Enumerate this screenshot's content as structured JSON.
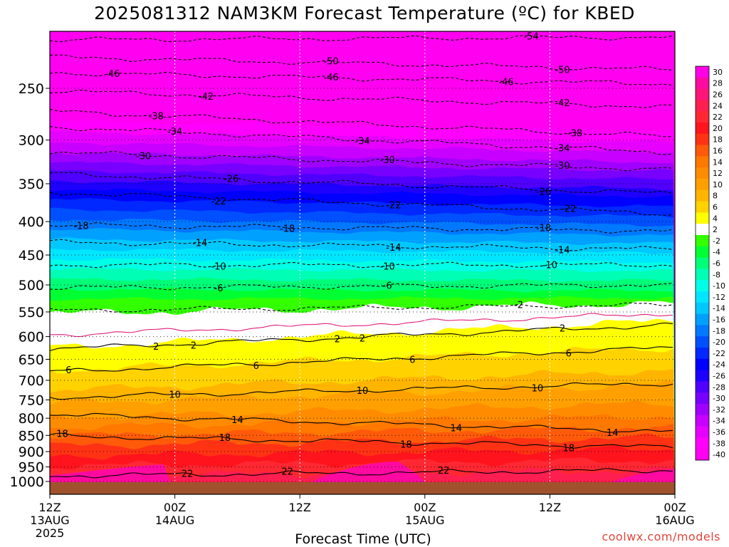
{
  "chart_data": {
    "type": "contour",
    "title": "2025081312 NAM3KM Forecast Temperature (ºC) for KBED",
    "xlabel": "Forecast Time (UTC)",
    "ylabel": "",
    "credit": "coolwx.com/models",
    "y_ticks": [
      "250",
      "300",
      "350",
      "400",
      "450",
      "500",
      "550",
      "600",
      "650",
      "700",
      "750",
      "800",
      "850",
      "900",
      "950",
      "1000"
    ],
    "x_ticks": [
      {
        "lines": [
          "12Z",
          "13AUG",
          "2025"
        ]
      },
      {
        "lines": [
          "00Z",
          "14AUG"
        ]
      },
      {
        "lines": [
          "12Z"
        ]
      },
      {
        "lines": [
          "00Z",
          "15AUG"
        ]
      },
      {
        "lines": [
          "12Z"
        ]
      },
      {
        "lines": [
          "00Z",
          "16AUG"
        ]
      }
    ],
    "colorbar": [
      {
        "label": "30",
        "color": "#ff00e6"
      },
      {
        "label": "28",
        "color": "#ff0aa0"
      },
      {
        "label": "26",
        "color": "#ff1478"
      },
      {
        "label": "24",
        "color": "#ff1e50"
      },
      {
        "label": "22",
        "color": "#ff2832"
      },
      {
        "label": "20",
        "color": "#ff141e"
      },
      {
        "label": "18",
        "color": "#ff3214"
      },
      {
        "label": "16",
        "color": "#ff5a0a"
      },
      {
        "label": "14",
        "color": "#ff7800"
      },
      {
        "label": "12",
        "color": "#ff8c00"
      },
      {
        "label": "10",
        "color": "#ffa000"
      },
      {
        "label": "8",
        "color": "#ffb400"
      },
      {
        "label": "6",
        "color": "#ffd200"
      },
      {
        "label": "4",
        "color": "#ffff00"
      },
      {
        "label": "2",
        "color": "#ffffff"
      },
      {
        "label": "-2",
        "color": "#32ff00"
      },
      {
        "label": "-4",
        "color": "#00ff32"
      },
      {
        "label": "-6",
        "color": "#00ff78"
      },
      {
        "label": "-8",
        "color": "#00ffb4"
      },
      {
        "label": "-10",
        "color": "#00ffe6"
      },
      {
        "label": "-12",
        "color": "#00e6ff"
      },
      {
        "label": "-14",
        "color": "#00c8ff"
      },
      {
        "label": "-16",
        "color": "#00a0ff"
      },
      {
        "label": "-18",
        "color": "#0078ff"
      },
      {
        "label": "-20",
        "color": "#0050ff"
      },
      {
        "label": "-22",
        "color": "#0028ff"
      },
      {
        "label": "-24",
        "color": "#0000ff"
      },
      {
        "label": "-26",
        "color": "#1e00ff"
      },
      {
        "label": "-28",
        "color": "#5000ff"
      },
      {
        "label": "-30",
        "color": "#7800ff"
      },
      {
        "label": "-32",
        "color": "#a000ff"
      },
      {
        "label": "-34",
        "color": "#c800ff"
      },
      {
        "label": "-36",
        "color": "#e600ff"
      },
      {
        "label": "-38",
        "color": "#ff00ff"
      },
      {
        "label": "-40",
        "color": "#ff00f0"
      }
    ],
    "contours": [
      {
        "value": "-54",
        "style": "dashed",
        "labels": [
          {
            "x": 0.77,
            "text": "-54"
          }
        ]
      },
      {
        "value": "-50",
        "style": "dashed",
        "labels": [
          {
            "x": 0.45,
            "text": "-50"
          },
          {
            "x": 0.82,
            "text": "-50"
          }
        ]
      },
      {
        "value": "-46",
        "style": "dashed",
        "labels": [
          {
            "x": 0.1,
            "text": "-46"
          },
          {
            "x": 0.45,
            "text": "-46"
          },
          {
            "x": 0.73,
            "text": "-46"
          }
        ]
      },
      {
        "value": "-42",
        "style": "dashed",
        "labels": [
          {
            "x": 0.25,
            "text": "-42"
          },
          {
            "x": 0.82,
            "text": "-42"
          }
        ]
      },
      {
        "value": "-38",
        "style": "dashed",
        "labels": [
          {
            "x": 0.17,
            "text": "-38"
          },
          {
            "x": 0.84,
            "text": "-38"
          }
        ]
      },
      {
        "value": "-34",
        "style": "dashed",
        "labels": [
          {
            "x": 0.2,
            "text": "-34"
          },
          {
            "x": 0.5,
            "text": "-34"
          },
          {
            "x": 0.82,
            "text": "-34"
          }
        ]
      },
      {
        "value": "-30",
        "style": "dashed",
        "labels": [
          {
            "x": 0.15,
            "text": "-30"
          },
          {
            "x": 0.54,
            "text": "-30"
          },
          {
            "x": 0.82,
            "text": "-30"
          }
        ]
      },
      {
        "value": "-26",
        "style": "dashed",
        "labels": [
          {
            "x": 0.29,
            "text": "-26"
          },
          {
            "x": 0.79,
            "text": "-26"
          }
        ]
      },
      {
        "value": "-22",
        "style": "dashed",
        "labels": [
          {
            "x": 0.27,
            "text": "-22"
          },
          {
            "x": 0.55,
            "text": "-22"
          },
          {
            "x": 0.83,
            "text": "-22"
          }
        ]
      },
      {
        "value": "-18",
        "style": "dashed",
        "labels": [
          {
            "x": 0.05,
            "text": "-18"
          },
          {
            "x": 0.38,
            "text": "-18"
          },
          {
            "x": 0.79,
            "text": "-18"
          }
        ]
      },
      {
        "value": "-14",
        "style": "dashed",
        "labels": [
          {
            "x": 0.24,
            "text": "-14"
          },
          {
            "x": 0.55,
            "text": "-14"
          },
          {
            "x": 0.82,
            "text": "-14"
          }
        ]
      },
      {
        "value": "-10",
        "style": "dashed",
        "labels": [
          {
            "x": 0.27,
            "text": "-10"
          },
          {
            "x": 0.54,
            "text": "-10"
          },
          {
            "x": 0.8,
            "text": "-10"
          }
        ]
      },
      {
        "value": "-6",
        "style": "dashed",
        "labels": [
          {
            "x": 0.27,
            "text": "-6"
          },
          {
            "x": 0.54,
            "text": "-6"
          }
        ]
      },
      {
        "value": "-2",
        "style": "dashed",
        "labels": [
          {
            "x": 0.75,
            "text": "-2"
          }
        ]
      },
      {
        "value": "0",
        "style": "magenta",
        "labels": []
      },
      {
        "value": "2",
        "style": "solid",
        "labels": [
          {
            "x": 0.17,
            "text": "2"
          },
          {
            "x": 0.46,
            "text": "2"
          },
          {
            "x": 0.23,
            "text": "2"
          },
          {
            "x": 0.5,
            "text": "2"
          },
          {
            "x": 0.82,
            "text": "2"
          }
        ]
      },
      {
        "value": "6",
        "style": "solid",
        "labels": [
          {
            "x": 0.03,
            "text": "6"
          },
          {
            "x": 0.33,
            "text": "6"
          },
          {
            "x": 0.58,
            "text": "6"
          },
          {
            "x": 0.83,
            "text": "6"
          }
        ]
      },
      {
        "value": "10",
        "style": "solid",
        "labels": [
          {
            "x": 0.2,
            "text": "10"
          },
          {
            "x": 0.5,
            "text": "10"
          },
          {
            "x": 0.78,
            "text": "10"
          }
        ]
      },
      {
        "value": "14",
        "style": "solid",
        "labels": [
          {
            "x": 0.3,
            "text": "14"
          },
          {
            "x": 0.65,
            "text": "14"
          },
          {
            "x": 0.9,
            "text": "14"
          }
        ]
      },
      {
        "value": "18",
        "style": "solid",
        "labels": [
          {
            "x": 0.02,
            "text": "18"
          },
          {
            "x": 0.28,
            "text": "18"
          },
          {
            "x": 0.57,
            "text": "18"
          },
          {
            "x": 0.83,
            "text": "18"
          }
        ]
      },
      {
        "value": "22",
        "style": "solid",
        "labels": [
          {
            "x": 0.22,
            "text": "22"
          },
          {
            "x": 0.38,
            "text": "22"
          },
          {
            "x": 0.63,
            "text": "22"
          }
        ]
      }
    ],
    "grid": true,
    "legend_placement": "right colorbar"
  }
}
